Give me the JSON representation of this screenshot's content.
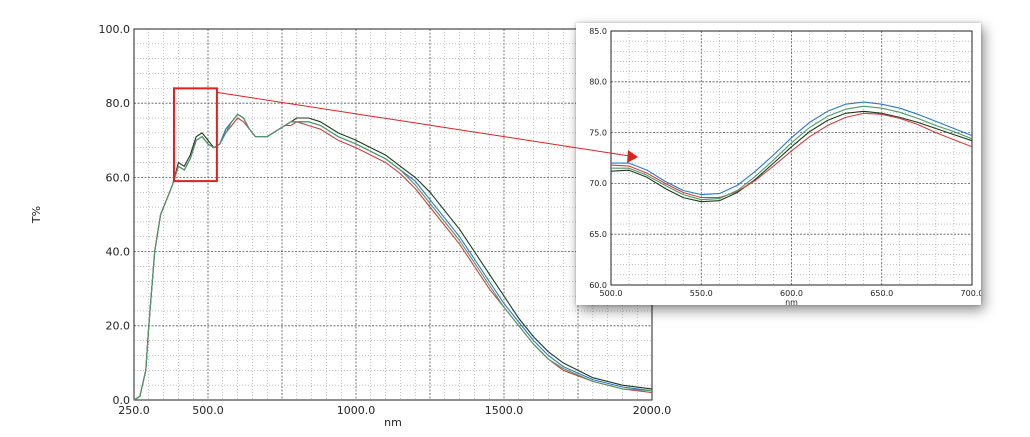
{
  "chart_data": [
    {
      "type": "line",
      "title": "",
      "xlabel": "nm",
      "ylabel": "T%",
      "xlim": [
        250,
        2000
      ],
      "ylim": [
        0,
        100
      ],
      "x_ticks": [
        "250.0",
        "500.0",
        "1000.0",
        "1500.0",
        "2000.0"
      ],
      "y_ticks": [
        "0.0",
        "20.0",
        "40.0",
        "60.0",
        "80.0",
        "100.0"
      ],
      "grid": true,
      "highlight_region": {
        "x": [
          385,
          530
        ],
        "y": [
          59,
          84
        ],
        "color": "#e02020"
      },
      "series": [
        {
          "color": "#1f3a1f",
          "x": [
            250,
            270,
            290,
            300,
            320,
            340,
            360,
            380,
            400,
            420,
            440,
            460,
            480,
            500,
            520,
            540,
            560,
            580,
            600,
            620,
            640,
            660,
            680,
            700,
            720,
            740,
            760,
            780,
            800,
            840,
            880,
            900,
            940,
            1000,
            1050,
            1100,
            1150,
            1200,
            1250,
            1300,
            1350,
            1400,
            1450,
            1500,
            1550,
            1600,
            1650,
            1700,
            1800,
            1900,
            2000
          ],
          "y": [
            0,
            1,
            8,
            20,
            40,
            50,
            54,
            58,
            64,
            63,
            66,
            71,
            72,
            70,
            68,
            69,
            73,
            75,
            77,
            76,
            73,
            71,
            71,
            71,
            72,
            73,
            74,
            75,
            76,
            76,
            75,
            74,
            72,
            70,
            68,
            66,
            63,
            60,
            56,
            51,
            46,
            40,
            34,
            28,
            22,
            17,
            13,
            10,
            6,
            4,
            3
          ]
        },
        {
          "color": "#2a78c8",
          "x": [
            250,
            270,
            290,
            300,
            320,
            340,
            360,
            380,
            400,
            420,
            440,
            460,
            480,
            500,
            520,
            540,
            560,
            580,
            600,
            620,
            640,
            660,
            680,
            700,
            720,
            740,
            760,
            780,
            800,
            840,
            880,
            900,
            940,
            1000,
            1050,
            1100,
            1150,
            1200,
            1250,
            1300,
            1350,
            1400,
            1450,
            1500,
            1550,
            1600,
            1650,
            1700,
            1800,
            1900,
            2000
          ],
          "y": [
            0,
            1,
            8,
            20,
            40,
            50,
            54,
            58,
            63,
            62,
            65,
            70,
            71,
            69,
            68,
            69,
            73,
            75,
            77,
            76,
            73,
            71,
            71,
            71,
            72,
            73,
            74,
            75,
            75,
            75,
            74,
            73,
            71,
            69,
            67,
            65,
            62,
            59,
            54,
            49,
            44,
            38,
            32,
            26,
            21,
            16,
            12,
            9,
            5.5,
            3.5,
            2.5
          ]
        },
        {
          "color": "#d04040",
          "x": [
            250,
            270,
            290,
            300,
            320,
            340,
            360,
            380,
            400,
            420,
            440,
            460,
            480,
            500,
            520,
            540,
            560,
            580,
            600,
            620,
            640,
            660,
            680,
            700,
            720,
            740,
            760,
            780,
            800,
            840,
            880,
            900,
            940,
            1000,
            1050,
            1100,
            1150,
            1200,
            1250,
            1300,
            1350,
            1400,
            1450,
            1500,
            1550,
            1600,
            1650,
            1700,
            1800,
            1900,
            2000
          ],
          "y": [
            0,
            1,
            8,
            20,
            40,
            50,
            54,
            58,
            63,
            62,
            65,
            70,
            71,
            69,
            68,
            69,
            72,
            74,
            76,
            75,
            73,
            71,
            71,
            71,
            72,
            73,
            74,
            74,
            75,
            74,
            73,
            72,
            70,
            68,
            66,
            64,
            61,
            57,
            52,
            47,
            42,
            36,
            30,
            25,
            20,
            15,
            11,
            8,
            5,
            3,
            2
          ]
        },
        {
          "color": "#4a9a6a",
          "x": [
            250,
            270,
            290,
            300,
            320,
            340,
            360,
            380,
            400,
            420,
            440,
            460,
            480,
            500,
            520,
            540,
            560,
            580,
            600,
            620,
            640,
            660,
            680,
            700,
            720,
            740,
            760,
            780,
            800,
            840,
            880,
            900,
            940,
            1000,
            1050,
            1100,
            1150,
            1200,
            1250,
            1300,
            1350,
            1400,
            1450,
            1500,
            1550,
            1600,
            1650,
            1700,
            1800,
            1900,
            2000
          ],
          "y": [
            0,
            1,
            8,
            20,
            40,
            50,
            54,
            58,
            63,
            62,
            65,
            70,
            71,
            69,
            68,
            69,
            72,
            75,
            77,
            76,
            73,
            71,
            71,
            71,
            72,
            73,
            74,
            75,
            75,
            75,
            74,
            73,
            71,
            69,
            67,
            65,
            62,
            58,
            53,
            48,
            43,
            37,
            31,
            25,
            20,
            15,
            11,
            8.5,
            5,
            3,
            2.5
          ]
        }
      ]
    },
    {
      "type": "line",
      "title": "",
      "xlabel": "nm",
      "ylabel": "",
      "xlim": [
        500,
        700
      ],
      "ylim": [
        60,
        85
      ],
      "x_ticks": [
        "500.0",
        "550.0",
        "600.0",
        "650.0",
        "700.0"
      ],
      "y_ticks": [
        "60.0",
        "65.0",
        "70.0",
        "75.0",
        "80.0",
        "85.0"
      ],
      "grid": true,
      "series": [
        {
          "color": "#1f3a1f",
          "x": [
            500,
            510,
            520,
            530,
            540,
            550,
            560,
            570,
            580,
            590,
            600,
            610,
            620,
            630,
            640,
            650,
            660,
            670,
            680,
            690,
            700
          ],
          "y": [
            71.2,
            71.3,
            70.6,
            69.5,
            68.6,
            68.2,
            68.3,
            69.1,
            70.4,
            72.0,
            73.6,
            75.1,
            76.2,
            76.9,
            77.1,
            76.9,
            76.5,
            76.0,
            75.4,
            74.8,
            74.2
          ]
        },
        {
          "color": "#2a78c8",
          "x": [
            500,
            510,
            520,
            530,
            540,
            550,
            560,
            570,
            580,
            590,
            600,
            610,
            620,
            630,
            640,
            650,
            660,
            670,
            680,
            690,
            700
          ],
          "y": [
            72.0,
            72.0,
            71.3,
            70.2,
            69.3,
            68.9,
            69.0,
            69.8,
            71.2,
            72.8,
            74.5,
            76.0,
            77.1,
            77.8,
            78.0,
            77.8,
            77.4,
            76.8,
            76.1,
            75.4,
            74.7
          ]
        },
        {
          "color": "#d04040",
          "x": [
            500,
            510,
            520,
            530,
            540,
            550,
            560,
            570,
            580,
            590,
            600,
            610,
            620,
            630,
            640,
            650,
            660,
            670,
            680,
            690,
            700
          ],
          "y": [
            71.8,
            71.7,
            71.0,
            70.0,
            69.1,
            68.6,
            68.6,
            69.2,
            70.3,
            71.7,
            73.2,
            74.6,
            75.7,
            76.5,
            76.9,
            76.8,
            76.4,
            75.8,
            75.0,
            74.3,
            73.6
          ]
        },
        {
          "color": "#4a9a6a",
          "x": [
            500,
            510,
            520,
            530,
            540,
            550,
            560,
            570,
            580,
            590,
            600,
            610,
            620,
            630,
            640,
            650,
            660,
            670,
            680,
            690,
            700
          ],
          "y": [
            71.5,
            71.5,
            70.8,
            69.8,
            68.9,
            68.4,
            68.5,
            69.3,
            70.7,
            72.3,
            74.0,
            75.5,
            76.6,
            77.3,
            77.6,
            77.4,
            77.0,
            76.4,
            75.7,
            75.1,
            74.4
          ]
        }
      ]
    }
  ]
}
